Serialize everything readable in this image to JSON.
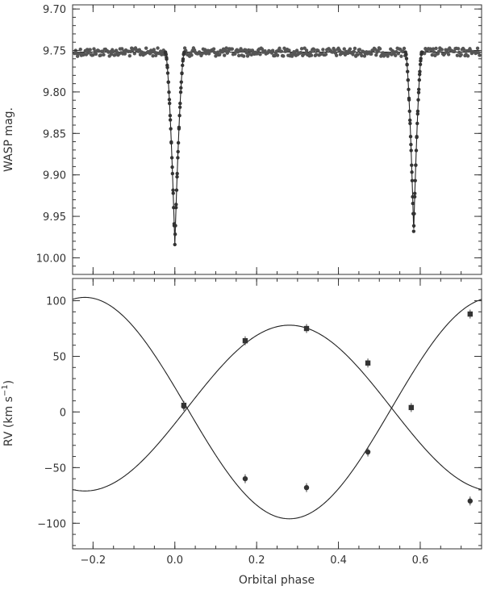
{
  "chart_data": [
    {
      "type": "scatter",
      "panel": "top",
      "xlabel": "",
      "ylabel": "WASP mag.",
      "xlim": [
        -0.25,
        0.75
      ],
      "ylim": [
        10.02,
        9.695
      ],
      "y_inverted": true,
      "y_ticks": [
        9.7,
        9.75,
        9.8,
        9.85,
        9.9,
        9.95,
        10.0
      ],
      "y_tick_labels": [
        "9.70",
        "9.75",
        "9.80",
        "9.85",
        "9.90",
        "9.95",
        "10.00"
      ],
      "x_ticks": [
        -0.2,
        0.0,
        0.2,
        0.4,
        0.6
      ],
      "grid": false,
      "baseline_mag": 9.752,
      "primary_eclipse": {
        "center_phase": 0.0,
        "depth_mag": 9.984,
        "half_width_phase": 0.023
      },
      "secondary_eclipse": {
        "center_phase": 0.584,
        "depth_mag": 9.968,
        "half_width_phase": 0.02
      },
      "observations": "Phase-folded WASP photometry: dense grey points tracing the model; out-of-eclipse scatter about 9.740–9.762 mag"
    },
    {
      "type": "line",
      "panel": "bottom",
      "xlabel": "Orbital phase",
      "ylabel_text": "RV (km s",
      "ylabel_sup": "−1",
      "ylabel_close": ")",
      "xlim": [
        -0.25,
        0.75
      ],
      "ylim": [
        -123,
        120
      ],
      "x_ticks": [
        -0.2,
        0.0,
        0.2,
        0.4,
        0.6
      ],
      "x_tick_labels": [
        "−0.2",
        "0.0",
        "0.2",
        "0.4",
        "0.6"
      ],
      "y_ticks": [
        -100,
        -50,
        0,
        50,
        100
      ],
      "y_tick_labels": [
        "−100",
        "−50",
        "0",
        "50",
        "100"
      ],
      "grid": false,
      "systemic_velocity": 3.5,
      "model_curves": [
        {
          "semi_amplitude": 74.5,
          "peak_phase": 0.28
        },
        {
          "semi_amplitude": -99.5,
          "peak_phase": 0.28
        }
      ],
      "series": [
        {
          "marker": "square",
          "x": [
            0.022,
            0.172,
            0.322,
            0.472,
            0.578,
            0.722
          ],
          "y": [
            6,
            64,
            75,
            44,
            4,
            88
          ],
          "err": [
            4,
            4,
            4,
            4,
            4,
            4
          ]
        },
        {
          "marker": "circle",
          "x": [
            0.022,
            0.172,
            0.322,
            0.472,
            0.722
          ],
          "y": [
            5,
            -60,
            -68,
            -36,
            -80
          ],
          "err": [
            4,
            4,
            4,
            4,
            4
          ]
        }
      ]
    }
  ]
}
